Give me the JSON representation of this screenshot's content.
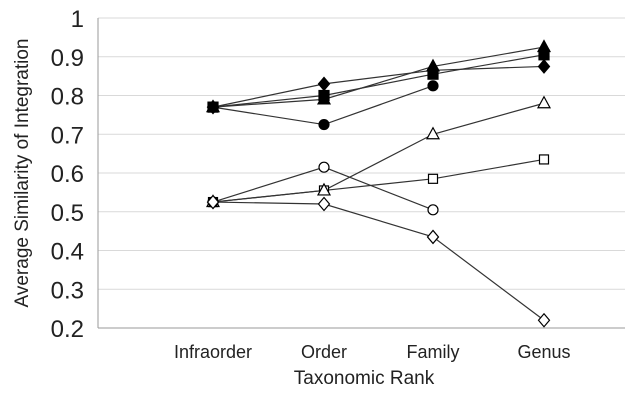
{
  "chart_data": {
    "type": "line",
    "title": "",
    "xlabel": "Taxonomic Rank",
    "ylabel": "Average Similarity of Integration",
    "categories": [
      "Infraorder",
      "Order",
      "Family",
      "Genus"
    ],
    "ylim": [
      0.2,
      1.0
    ],
    "yticks": [
      "0.2",
      "0.3",
      "0.4",
      "0.5",
      "0.6",
      "0.7",
      "0.8",
      "0.9",
      "1"
    ],
    "grid": true,
    "legend": "none",
    "colors": {
      "line": "#333333",
      "filled": "#000000",
      "open": "#ffffff",
      "grid": "#d9d9d9",
      "axis": "#9a9a9a"
    },
    "series": [
      {
        "marker": "square",
        "fill": "filled",
        "values": [
          0.77,
          0.8,
          0.855,
          0.905
        ]
      },
      {
        "marker": "triangle",
        "fill": "filled",
        "values": [
          0.77,
          0.79,
          0.875,
          0.925
        ]
      },
      {
        "marker": "diamond",
        "fill": "filled",
        "values": [
          0.77,
          0.83,
          0.865,
          0.875
        ]
      },
      {
        "marker": "circle",
        "fill": "filled",
        "values": [
          0.77,
          0.725,
          0.825,
          null
        ]
      },
      {
        "marker": "square",
        "fill": "open",
        "values": [
          0.525,
          0.555,
          0.585,
          0.635
        ]
      },
      {
        "marker": "triangle",
        "fill": "open",
        "values": [
          0.525,
          0.555,
          0.7,
          0.78
        ]
      },
      {
        "marker": "circle",
        "fill": "open",
        "values": [
          0.525,
          0.615,
          0.505,
          null
        ]
      },
      {
        "marker": "diamond",
        "fill": "open",
        "values": [
          0.525,
          0.52,
          0.435,
          0.22
        ]
      }
    ]
  }
}
